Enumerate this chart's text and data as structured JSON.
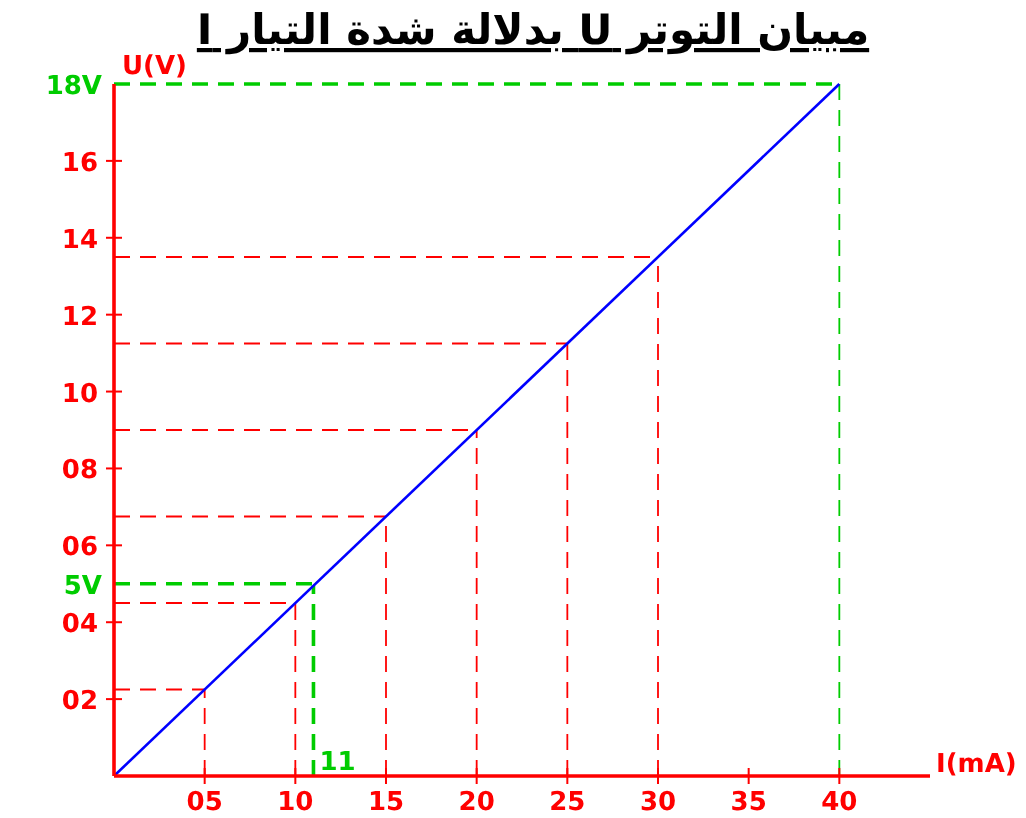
{
  "chart_data": {
    "type": "line",
    "title": "مبيان التوتر U بدلالة شدة التيار I",
    "xlabel": "I(mA)",
    "ylabel": "U(V)",
    "x": [
      0,
      40
    ],
    "series": [
      {
        "color": "#0000ff",
        "values": [
          0,
          18
        ]
      }
    ],
    "xlim": [
      0,
      45
    ],
    "ylim": [
      0,
      18
    ],
    "xticks": [
      {
        "value": 5,
        "label": "05"
      },
      10,
      15,
      20,
      25,
      30,
      35,
      40
    ],
    "yticks": [
      {
        "value": 2,
        "label": "02"
      },
      {
        "value": 4,
        "label": "04"
      },
      {
        "value": 6,
        "label": "06"
      },
      {
        "value": 8,
        "label": "08"
      },
      10,
      12,
      14,
      16
    ],
    "grid": false,
    "marker": "none",
    "line_style": "solid",
    "ref_lines": [
      {
        "axis": "x",
        "value": 5,
        "color": "#ff0000",
        "line_style": "dashed"
      },
      {
        "axis": "x",
        "value": 10,
        "color": "#ff0000",
        "line_style": "dashed"
      },
      {
        "axis": "x",
        "value": 15,
        "color": "#ff0000",
        "line_style": "dashed"
      },
      {
        "axis": "x",
        "value": 20,
        "color": "#ff0000",
        "line_style": "dashed"
      },
      {
        "axis": "x",
        "value": 25,
        "color": "#ff0000",
        "line_style": "dashed"
      },
      {
        "axis": "x",
        "value": 30,
        "color": "#ff0000",
        "line_style": "dashed"
      },
      {
        "axis": "y",
        "value": 2.25,
        "color": "#ff0000",
        "line_style": "dashed"
      },
      {
        "axis": "y",
        "value": 4.5,
        "color": "#ff0000",
        "line_style": "dashed"
      },
      {
        "axis": "y",
        "value": 6.75,
        "color": "#ff0000",
        "line_style": "dashed"
      },
      {
        "axis": "y",
        "value": 9,
        "color": "#ff0000",
        "line_style": "dashed"
      },
      {
        "axis": "y",
        "value": 11.25,
        "color": "#ff0000",
        "line_style": "dashed"
      },
      {
        "axis": "y",
        "value": 13.5,
        "color": "#ff0000",
        "line_style": "dashed"
      },
      {
        "axis": "x",
        "value": 11,
        "label": "11",
        "color": "#00cc00",
        "line_style": "dashed"
      },
      {
        "axis": "y",
        "value": 5,
        "label": "5V",
        "color": "#00cc00",
        "line_style": "dashed"
      },
      {
        "axis": "x",
        "value": 40,
        "color": "#00cc00",
        "line_style": "dashed"
      },
      {
        "axis": "y",
        "value": 18,
        "label": "18V",
        "color": "#00cc00",
        "line_style": "dashed"
      }
    ]
  }
}
